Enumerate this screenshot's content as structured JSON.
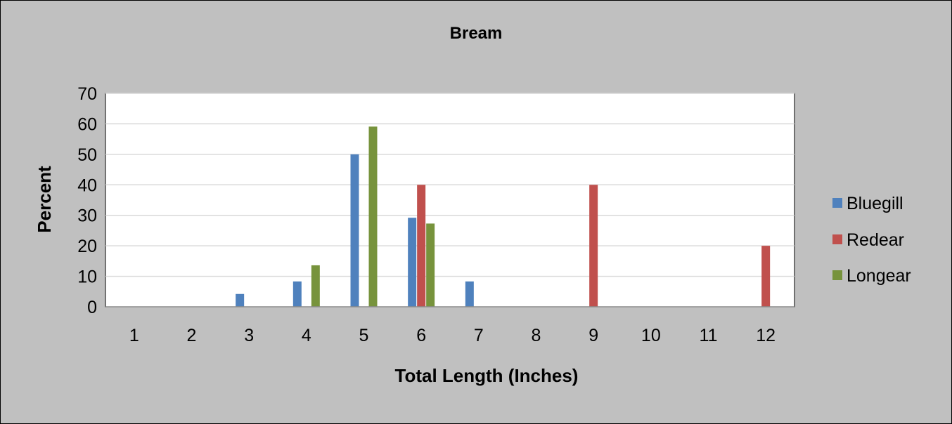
{
  "chart_data": {
    "type": "bar",
    "title": "Bream",
    "xlabel": "Total Length (Inches)",
    "ylabel": "Percent",
    "categories": [
      "1",
      "2",
      "3",
      "4",
      "5",
      "6",
      "7",
      "8",
      "9",
      "10",
      "11",
      "12"
    ],
    "series": [
      {
        "name": "Bluegill",
        "color": "#4f81bd",
        "values": [
          0,
          0,
          4.2,
          8.3,
          50,
          29.2,
          8.3,
          0,
          0,
          0,
          0,
          0
        ]
      },
      {
        "name": "Redear",
        "color": "#c0504d",
        "values": [
          0,
          0,
          0,
          0,
          0,
          40,
          0,
          0,
          40,
          0,
          0,
          20
        ]
      },
      {
        "name": "Longear",
        "color": "#77933c",
        "values": [
          0,
          0,
          0,
          13.6,
          59.1,
          27.3,
          0,
          0,
          0,
          0,
          0,
          0
        ]
      }
    ],
    "ylim": [
      0,
      70
    ],
    "yticks": [
      0,
      10,
      20,
      30,
      40,
      50,
      60,
      70
    ],
    "grid": true,
    "legend_position": "right",
    "background": "#c0c0c0",
    "plot_background": "#ffffff",
    "gridline_color": "#d9d9d9"
  }
}
